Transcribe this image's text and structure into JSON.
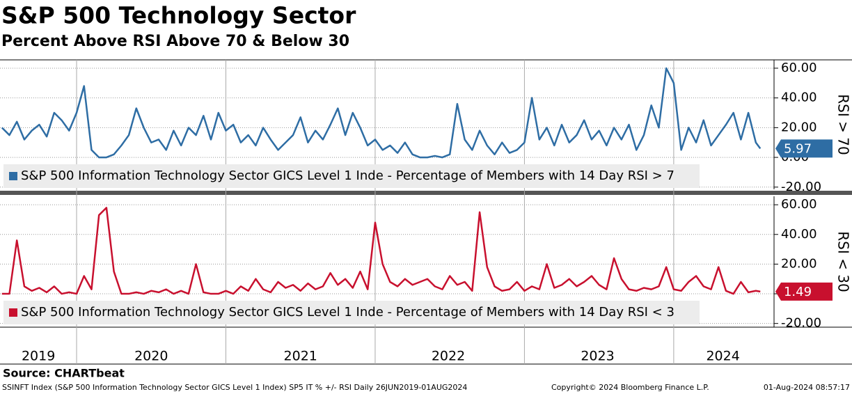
{
  "chart_data": [
    {
      "type": "line",
      "title": "S&P 500 Technology Sector",
      "subtitle": "Percent Above RSI Above 70 & Below 30",
      "y_label": "RSI > 70",
      "xlim": [
        2019.487,
        2024.672
      ],
      "x": [
        2019.5,
        2019.55,
        2019.6,
        2019.65,
        2019.7,
        2019.75,
        2019.8,
        2019.85,
        2019.9,
        2019.95,
        2020,
        2020.05,
        2020.1,
        2020.15,
        2020.2,
        2020.25,
        2020.3,
        2020.35,
        2020.4,
        2020.45,
        2020.5,
        2020.55,
        2020.6,
        2020.65,
        2020.7,
        2020.75,
        2020.8,
        2020.85,
        2020.9,
        2020.95,
        2021,
        2021.05,
        2021.1,
        2021.15,
        2021.2,
        2021.25,
        2021.3,
        2021.35,
        2021.4,
        2021.45,
        2021.5,
        2021.55,
        2021.6,
        2021.65,
        2021.7,
        2021.75,
        2021.8,
        2021.85,
        2021.9,
        2021.95,
        2022,
        2022.05,
        2022.1,
        2022.15,
        2022.2,
        2022.25,
        2022.3,
        2022.35,
        2022.4,
        2022.45,
        2022.5,
        2022.55,
        2022.6,
        2022.65,
        2022.7,
        2022.75,
        2022.8,
        2022.85,
        2022.9,
        2022.95,
        2023,
        2023.05,
        2023.1,
        2023.15,
        2023.2,
        2023.25,
        2023.3,
        2023.35,
        2023.4,
        2023.45,
        2023.5,
        2023.55,
        2023.6,
        2023.65,
        2023.7,
        2023.75,
        2023.8,
        2023.85,
        2023.9,
        2023.95,
        2024,
        2024.05,
        2024.1,
        2024.15,
        2024.2,
        2024.25,
        2024.3,
        2024.35,
        2024.4,
        2024.45,
        2024.5,
        2024.55,
        2024.58
      ],
      "series": [
        {
          "name": "S&P 500 Information Technology Sector GICS Level 1 Inde - Percentage of Members with 14 Day RSI > 7",
          "color": "#2e6da4",
          "values": [
            20,
            15,
            24,
            12,
            18,
            22,
            14,
            30,
            25,
            18,
            30,
            48,
            5,
            0,
            0,
            2,
            8,
            15,
            33,
            20,
            10,
            12,
            5,
            18,
            8,
            20,
            15,
            28,
            12,
            30,
            18,
            22,
            10,
            15,
            8,
            20,
            12,
            5,
            10,
            15,
            27,
            10,
            18,
            12,
            22,
            33,
            15,
            30,
            20,
            8,
            12,
            5,
            8,
            3,
            10,
            2,
            0,
            0,
            1,
            0,
            2,
            36,
            12,
            5,
            18,
            8,
            2,
            10,
            3,
            5,
            10,
            40,
            12,
            20,
            8,
            22,
            10,
            15,
            25,
            12,
            18,
            8,
            20,
            12,
            22,
            5,
            15,
            35,
            20,
            60,
            50,
            5,
            20,
            10,
            25,
            8,
            15,
            22,
            30,
            12,
            30,
            10,
            5.97
          ]
        }
      ],
      "ylim": [
        -21.5,
        65.6
      ],
      "yticks": [
        {
          "value": 60,
          "label": "60.00"
        },
        {
          "value": 40,
          "label": "40.00"
        },
        {
          "value": 20,
          "label": "20.00"
        },
        {
          "value": 0,
          "label": "0.00"
        },
        {
          "value": -20,
          "label": "-20.00"
        }
      ],
      "xgrid": [
        2020,
        2021,
        2022,
        2023,
        2024
      ],
      "grid": true
    },
    {
      "type": "line",
      "y_label": "RSI < 30",
      "xlim": [
        2019.487,
        2024.672
      ],
      "x": [
        2019.5,
        2019.55,
        2019.6,
        2019.65,
        2019.7,
        2019.75,
        2019.8,
        2019.85,
        2019.9,
        2019.95,
        2020,
        2020.05,
        2020.1,
        2020.15,
        2020.2,
        2020.25,
        2020.3,
        2020.35,
        2020.4,
        2020.45,
        2020.5,
        2020.55,
        2020.6,
        2020.65,
        2020.7,
        2020.75,
        2020.8,
        2020.85,
        2020.9,
        2020.95,
        2021,
        2021.05,
        2021.1,
        2021.15,
        2021.2,
        2021.25,
        2021.3,
        2021.35,
        2021.4,
        2021.45,
        2021.5,
        2021.55,
        2021.6,
        2021.65,
        2021.7,
        2021.75,
        2021.8,
        2021.85,
        2021.9,
        2021.95,
        2022,
        2022.05,
        2022.1,
        2022.15,
        2022.2,
        2022.25,
        2022.3,
        2022.35,
        2022.4,
        2022.45,
        2022.5,
        2022.55,
        2022.6,
        2022.65,
        2022.7,
        2022.75,
        2022.8,
        2022.85,
        2022.9,
        2022.95,
        2023,
        2023.05,
        2023.1,
        2023.15,
        2023.2,
        2023.25,
        2023.3,
        2023.35,
        2023.4,
        2023.45,
        2023.5,
        2023.55,
        2023.6,
        2023.65,
        2023.7,
        2023.75,
        2023.8,
        2023.85,
        2023.9,
        2023.95,
        2024,
        2024.05,
        2024.1,
        2024.15,
        2024.2,
        2024.25,
        2024.3,
        2024.35,
        2024.4,
        2024.45,
        2024.5,
        2024.55,
        2024.58
      ],
      "series": [
        {
          "name": "S&P 500 Information Technology Sector GICS Level 1 Inde - Percentage of Members with 14 Day RSI < 3",
          "color": "#c8102e",
          "values": [
            0,
            0,
            36,
            5,
            2,
            4,
            1,
            5,
            0,
            1,
            0,
            12,
            3,
            53,
            58,
            15,
            0,
            0,
            1,
            0,
            2,
            1,
            3,
            0,
            2,
            0,
            20,
            1,
            0,
            0,
            2,
            0,
            5,
            2,
            10,
            3,
            1,
            8,
            4,
            6,
            2,
            7,
            3,
            5,
            14,
            6,
            10,
            4,
            15,
            3,
            48,
            20,
            8,
            5,
            10,
            6,
            8,
            10,
            5,
            3,
            12,
            6,
            8,
            2,
            55,
            18,
            5,
            2,
            3,
            8,
            2,
            5,
            3,
            20,
            4,
            6,
            10,
            5,
            8,
            12,
            6,
            3,
            24,
            10,
            3,
            2,
            4,
            3,
            5,
            18,
            3,
            2,
            8,
            12,
            5,
            3,
            18,
            2,
            0,
            8,
            1,
            2,
            1.49
          ]
        }
      ],
      "ylim": [
        -22.5,
        65.7
      ],
      "yticks": [
        {
          "value": 60,
          "label": "60.00"
        },
        {
          "value": 40,
          "label": "40.00"
        },
        {
          "value": 20,
          "label": "20.00"
        },
        {
          "value": 0,
          "label": "0.00"
        },
        {
          "value": -20,
          "label": "-20.00"
        }
      ],
      "xticks": [
        {
          "value": 2019.744,
          "label": "2019"
        },
        {
          "value": 2020.5,
          "label": "2020"
        },
        {
          "value": 2021.5,
          "label": "2021"
        },
        {
          "value": 2022.49,
          "label": "2022"
        },
        {
          "value": 2023.49,
          "label": "2023"
        },
        {
          "value": 2024.33,
          "label": "2024"
        }
      ],
      "grid": true
    }
  ],
  "footer": {
    "source": "Source: CHARTbeat",
    "description": "SSINFT Index (S&P 500 Information Technology Sector GICS Level 1 Index) SP5 IT % +/- RSI  Daily 26JUN2019-01AUG2024",
    "copyright": "Copyright© 2024 Bloomberg Finance L.P.",
    "timestamp": "01-Aug-2024 08:57:17"
  }
}
